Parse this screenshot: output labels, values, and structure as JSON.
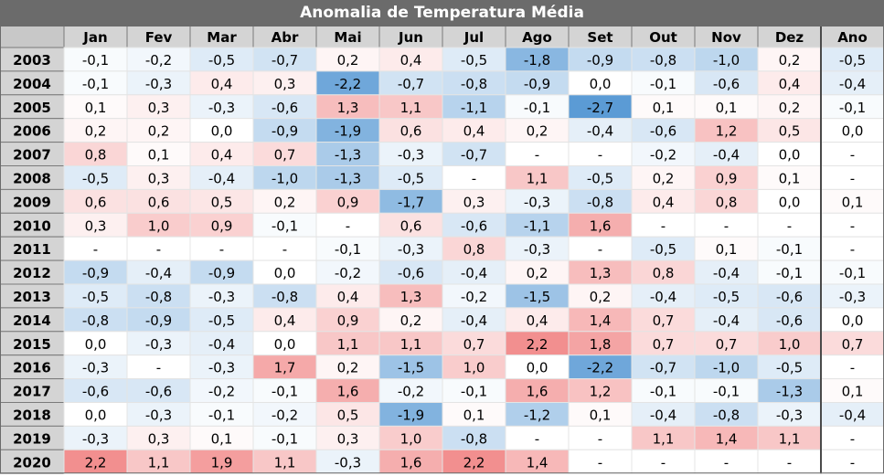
{
  "chart_data": {
    "type": "heatmap",
    "title": "Anomalia de Temperatura Média",
    "columns": [
      "Jan",
      "Fev",
      "Mar",
      "Abr",
      "Mai",
      "Jun",
      "Jul",
      "Ago",
      "Set",
      "Out",
      "Nov",
      "Dez",
      "Ano"
    ],
    "rows": [
      {
        "year": "2003",
        "values": [
          "-0,1",
          "-0,2",
          "-0,5",
          "-0,7",
          "0,2",
          "0,4",
          "-0,5",
          "-1,8",
          "-0,9",
          "-0,8",
          "-1,0",
          "0,2",
          "-0,5"
        ]
      },
      {
        "year": "2004",
        "values": [
          "-0,1",
          "-0,3",
          "0,4",
          "0,3",
          "-2,2",
          "-0,7",
          "-0,8",
          "-0,9",
          "0,0",
          "-0,1",
          "-0,6",
          "0,4",
          "-0,4"
        ]
      },
      {
        "year": "2005",
        "values": [
          "0,1",
          "0,3",
          "-0,3",
          "-0,6",
          "1,3",
          "1,1",
          "-1,1",
          "-0,1",
          "-2,7",
          "0,1",
          "0,1",
          "0,2",
          "-0,1"
        ]
      },
      {
        "year": "2006",
        "values": [
          "0,2",
          "0,2",
          "0,0",
          "-0,9",
          "-1,9",
          "0,6",
          "0,4",
          "0,2",
          "-0,4",
          "-0,6",
          "1,2",
          "0,5",
          "0,0"
        ]
      },
      {
        "year": "2007",
        "values": [
          "0,8",
          "0,1",
          "0,4",
          "0,7",
          "-1,3",
          "-0,3",
          "-0,7",
          "-",
          "-",
          "-0,2",
          "-0,4",
          "0,0",
          "-"
        ]
      },
      {
        "year": "2008",
        "values": [
          "-0,5",
          "0,3",
          "-0,4",
          "-1,0",
          "-1,3",
          "-0,5",
          "-",
          "1,1",
          "-0,5",
          "0,2",
          "0,9",
          "0,1",
          "-"
        ]
      },
      {
        "year": "2009",
        "values": [
          "0,6",
          "0,6",
          "0,5",
          "0,2",
          "0,9",
          "-1,7",
          "0,3",
          "-0,3",
          "-0,8",
          "0,4",
          "0,8",
          "0,0",
          "0,1"
        ]
      },
      {
        "year": "2010",
        "values": [
          "0,3",
          "1,0",
          "0,9",
          "-0,1",
          "-",
          "0,6",
          "-0,6",
          "-1,1",
          "1,6",
          "-",
          "-",
          "-",
          "-"
        ]
      },
      {
        "year": "2011",
        "values": [
          "-",
          "-",
          "-",
          "-",
          "-0,1",
          "-0,3",
          "0,8",
          "-0,3",
          "-",
          "-0,5",
          "0,1",
          "-0,1",
          "-"
        ]
      },
      {
        "year": "2012",
        "values": [
          "-0,9",
          "-0,4",
          "-0,9",
          "0,0",
          "-0,2",
          "-0,6",
          "-0,4",
          "0,2",
          "1,3",
          "0,8",
          "-0,4",
          "-0,1",
          "-0,1"
        ]
      },
      {
        "year": "2013",
        "values": [
          "-0,5",
          "-0,8",
          "-0,3",
          "-0,8",
          "0,4",
          "1,3",
          "-0,2",
          "-1,5",
          "0,2",
          "-0,4",
          "-0,5",
          "-0,6",
          "-0,3"
        ]
      },
      {
        "year": "2014",
        "values": [
          "-0,8",
          "-0,9",
          "-0,5",
          "0,4",
          "0,9",
          "0,2",
          "-0,4",
          "0,4",
          "1,4",
          "0,7",
          "-0,4",
          "-0,6",
          "0,0"
        ]
      },
      {
        "year": "2015",
        "values": [
          "0,0",
          "-0,3",
          "-0,4",
          "0,0",
          "1,1",
          "1,1",
          "0,7",
          "2,2",
          "1,8",
          "0,7",
          "0,7",
          "1,0",
          "0,7"
        ]
      },
      {
        "year": "2016",
        "values": [
          "-0,3",
          "-",
          "-0,3",
          "1,7",
          "0,2",
          "-1,5",
          "1,0",
          "0,0",
          "-2,2",
          "-0,7",
          "-1,0",
          "-0,5",
          "-"
        ]
      },
      {
        "year": "2017",
        "values": [
          "-0,6",
          "-0,6",
          "-0,2",
          "-0,1",
          "1,6",
          "-0,2",
          "-0,1",
          "1,6",
          "1,2",
          "-0,1",
          "-0,1",
          "-1,3",
          "0,1"
        ]
      },
      {
        "year": "2018",
        "values": [
          "0,0",
          "-0,3",
          "-0,1",
          "-0,2",
          "0,5",
          "-1,9",
          "0,1",
          "-1,2",
          "0,1",
          "-0,4",
          "-0,8",
          "-0,3",
          "-0,4"
        ]
      },
      {
        "year": "2019",
        "values": [
          "-0,3",
          "0,3",
          "0,1",
          "-0,1",
          "0,3",
          "1,0",
          "-0,8",
          "-",
          "-",
          "1,1",
          "1,4",
          "1,1",
          "-"
        ]
      },
      {
        "year": "2020",
        "values": [
          "2,2",
          "1,1",
          "1,9",
          "1,1",
          "-0,3",
          "1,6",
          "2,2",
          "1,4",
          "-",
          "-",
          "-",
          "-",
          "-"
        ]
      }
    ],
    "colors": {
      "positive_max": "#f08080",
      "negative_max": "#5b9bd5",
      "neutral": "#ffffff",
      "header_bg": "#d4d4d4",
      "title_bg": "#6b6b6b"
    }
  }
}
